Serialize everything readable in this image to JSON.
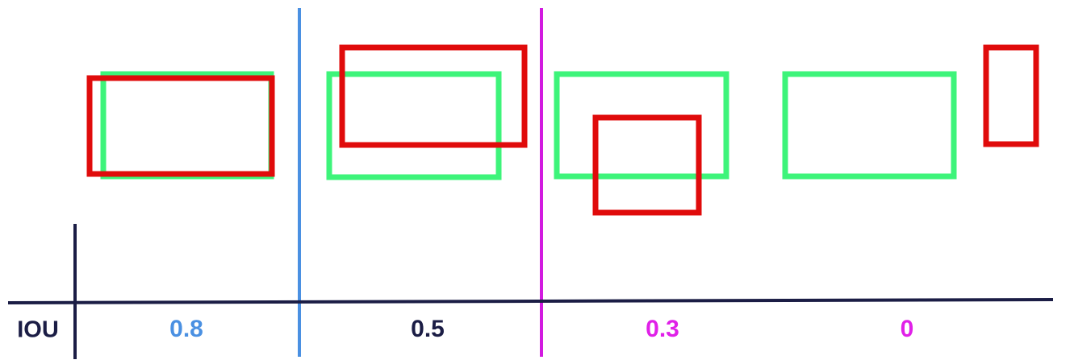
{
  "axis_label": "IOU",
  "groups": [
    {
      "iou": "0.8",
      "label_color": "#4a90e2"
    },
    {
      "iou": "0.5",
      "label_color": "#1b1d45"
    },
    {
      "iou": "0.3",
      "label_color": "#e020e8"
    },
    {
      "iou": "0",
      "label_color": "#e020e8"
    }
  ],
  "colors": {
    "ground_truth_box": "#3df47a",
    "prediction_box": "#e00b0b",
    "axis": "#1b1d45",
    "divider_1": "#4a90e2",
    "divider_2": "#d21ae0"
  }
}
